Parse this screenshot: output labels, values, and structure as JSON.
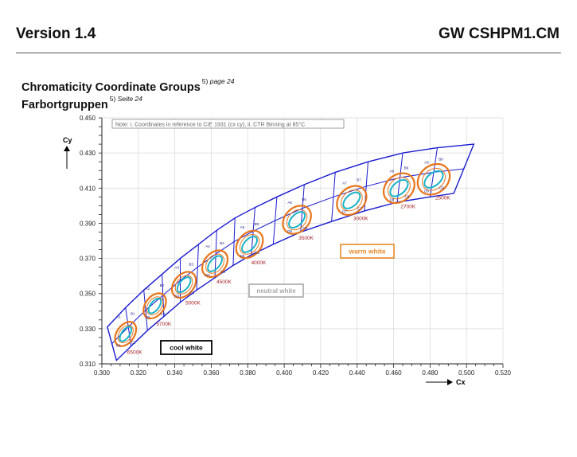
{
  "header": {
    "version": "Version 1.4",
    "product": "GW CSHPM1.CM"
  },
  "title": {
    "line1": "Chromaticity Coordinate Groups",
    "line1_sup": "5)",
    "line1_ref": "page 24",
    "line2": "Farbortgruppen",
    "line2_sup": "5)",
    "line2_ref": "Seite 24"
  },
  "chart_data": {
    "type": "scatter",
    "note": "Note: i. Coordinates in reference to CIE 1931 (cx cy), ii. CTR Binning at 85°C",
    "xlabel": "Cx",
    "ylabel": "Cy",
    "xlim": [
      0.3,
      0.52
    ],
    "ylim": [
      0.31,
      0.45
    ],
    "xticks": [
      "0.300",
      "0.320",
      "0.340",
      "0.360",
      "0.380",
      "0.400",
      "0.420",
      "0.440",
      "0.460",
      "0.480",
      "0.500",
      "0.520"
    ],
    "yticks": [
      "0.310",
      "0.330",
      "0.350",
      "0.370",
      "0.390",
      "0.410",
      "0.430",
      "0.450"
    ],
    "grid": true,
    "colors": {
      "outline": "#1a1ad0",
      "ellipse_outer": "#e8751a",
      "ellipse_inner": "#19b3c8",
      "cct_label": "#a41e22",
      "warm_box": "#e8892a",
      "neutral_box": "#a9a9a9",
      "cool_box": "#000000",
      "grid": "#d8d8d8"
    },
    "region_labels": [
      {
        "text": "cool white",
        "style": "cool"
      },
      {
        "text": "neutral white",
        "style": "neutral"
      },
      {
        "text": "warm white",
        "style": "warm"
      }
    ],
    "boundary_top": [
      [
        0.303,
        0.331
      ],
      [
        0.313,
        0.342
      ],
      [
        0.323,
        0.352
      ],
      [
        0.333,
        0.361
      ],
      [
        0.343,
        0.37
      ],
      [
        0.353,
        0.378
      ],
      [
        0.363,
        0.386
      ],
      [
        0.373,
        0.393
      ],
      [
        0.384,
        0.399
      ],
      [
        0.396,
        0.405
      ],
      [
        0.411,
        0.412
      ],
      [
        0.428,
        0.419
      ],
      [
        0.446,
        0.425
      ],
      [
        0.465,
        0.43
      ],
      [
        0.484,
        0.433
      ],
      [
        0.504,
        0.435
      ]
    ],
    "boundary_bottom": [
      [
        0.308,
        0.312
      ],
      [
        0.316,
        0.32
      ],
      [
        0.325,
        0.329
      ],
      [
        0.334,
        0.337
      ],
      [
        0.343,
        0.345
      ],
      [
        0.352,
        0.352
      ],
      [
        0.362,
        0.359
      ],
      [
        0.372,
        0.366
      ],
      [
        0.382,
        0.372
      ],
      [
        0.394,
        0.378
      ],
      [
        0.409,
        0.385
      ],
      [
        0.426,
        0.391
      ],
      [
        0.444,
        0.397
      ],
      [
        0.462,
        0.402
      ],
      [
        0.48,
        0.405
      ],
      [
        0.493,
        0.407
      ]
    ],
    "groups": [
      {
        "cct": "6500K",
        "cx": 0.313,
        "cy": 0.327,
        "bins": [
          "A1",
          "B1",
          "C1",
          "D1"
        ]
      },
      {
        "cct": "5700K",
        "cx": 0.329,
        "cy": 0.343,
        "bins": [
          "A2",
          "B2",
          "C2",
          "D2"
        ]
      },
      {
        "cct": "5000K",
        "cx": 0.345,
        "cy": 0.355,
        "bins": [
          "A3",
          "B3",
          "C3",
          "D3"
        ]
      },
      {
        "cct": "4500K",
        "cx": 0.362,
        "cy": 0.367,
        "bins": [
          "A4",
          "B4",
          "C4",
          "D4"
        ]
      },
      {
        "cct": "4000K",
        "cx": 0.381,
        "cy": 0.378,
        "bins": [
          "A5",
          "B5",
          "C5",
          "D5"
        ]
      },
      {
        "cct": "3500K",
        "cx": 0.407,
        "cy": 0.392,
        "bins": [
          "A6",
          "B6",
          "C6",
          "D6"
        ]
      },
      {
        "cct": "3000K",
        "cx": 0.437,
        "cy": 0.403,
        "bins": [
          "A7",
          "B7",
          "C7",
          "D7"
        ]
      },
      {
        "cct": "2700K",
        "cx": 0.463,
        "cy": 0.41,
        "bins": [
          "A8",
          "B8",
          "C8",
          "D8"
        ]
      },
      {
        "cct": "2500K",
        "cx": 0.482,
        "cy": 0.415,
        "bins": [
          "A9",
          "B9",
          "C9",
          "D9"
        ]
      }
    ]
  }
}
